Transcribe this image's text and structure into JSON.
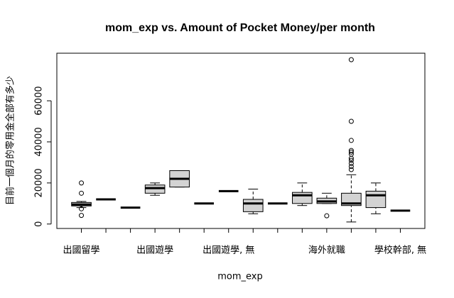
{
  "chart_data": {
    "type": "boxplot",
    "title": "mom_exp vs. Amount of Pocket Money/per month",
    "x_label": "mom_exp",
    "y_label": "目前一個月的零用金全部有多少",
    "categories": [
      "出國留學",
      null,
      null,
      "出國遊學",
      null,
      null,
      "出國遊學, 無",
      null,
      null,
      null,
      "海外就職",
      null,
      null,
      "學校幹部, 無"
    ],
    "color": "#d3d3d3",
    "boxes": [
      {
        "min": 8000,
        "q1": 8800,
        "median": 9500,
        "q3": 10500,
        "max": 11000,
        "outliers": [
          20000,
          15000,
          7400,
          4200
        ]
      },
      {
        "min": 12000,
        "q1": 12000,
        "median": 12000,
        "q3": 12000,
        "max": 12000,
        "outliers": []
      },
      {
        "min": 8000,
        "q1": 8000,
        "median": 8000,
        "q3": 8000,
        "max": 8000,
        "outliers": []
      },
      {
        "min": 14000,
        "q1": 15000,
        "median": 17500,
        "q3": 19000,
        "max": 20000,
        "outliers": []
      },
      {
        "min": 18000,
        "q1": 18000,
        "median": 22000,
        "q3": 26000,
        "max": 26000,
        "outliers": []
      },
      {
        "min": 10000,
        "q1": 10000,
        "median": 10000,
        "q3": 10000,
        "max": 10000,
        "outliers": []
      },
      {
        "min": 16000,
        "q1": 16000,
        "median": 16000,
        "q3": 16000,
        "max": 16000,
        "outliers": []
      },
      {
        "min": 5000,
        "q1": 6000,
        "median": 10000,
        "q3": 12000,
        "max": 17000,
        "outliers": []
      },
      {
        "min": 10000,
        "q1": 10000,
        "median": 10000,
        "q3": 10000,
        "max": 10000,
        "outliers": []
      },
      {
        "min": 9000,
        "q1": 10000,
        "median": 14000,
        "q3": 15400,
        "max": 20000,
        "outliers": []
      },
      {
        "min": 10000,
        "q1": 10000,
        "median": 11000,
        "q3": 12600,
        "max": 15000,
        "outliers": [
          4000
        ]
      },
      {
        "min": 1000,
        "q1": 9000,
        "median": 10000,
        "q3": 15000,
        "max": 24000,
        "outliers": [
          26500,
          28000,
          29500,
          31000,
          32000,
          34000,
          35000,
          35800,
          40700,
          50000,
          80000
        ]
      },
      {
        "min": 5000,
        "q1": 8000,
        "median": 14000,
        "q3": 16000,
        "max": 20000,
        "outliers": []
      },
      {
        "min": 6500,
        "q1": 6500,
        "median": 6500,
        "q3": 6500,
        "max": 6500,
        "outliers": []
      }
    ],
    "ylim": [
      -2160,
      83160
    ],
    "yticks": [
      0,
      20000,
      40000,
      60000
    ]
  }
}
